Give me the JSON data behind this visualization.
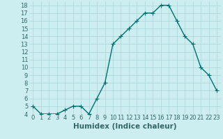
{
  "x": [
    0,
    1,
    2,
    3,
    4,
    5,
    6,
    7,
    8,
    9,
    10,
    11,
    12,
    13,
    14,
    15,
    16,
    17,
    18,
    19,
    20,
    21,
    22,
    23
  ],
  "y": [
    5,
    4,
    4,
    4,
    4.5,
    5,
    5,
    4,
    6,
    8,
    13,
    14,
    15,
    16,
    17,
    17,
    18,
    18,
    16,
    14,
    13,
    10,
    9,
    7
  ],
  "xlabel": "Humidex (Indice chaleur)",
  "line_color": "#007070",
  "marker": "+",
  "bg_color": "#cceef0",
  "grid_color": "#aad4d6",
  "tick_label_color": "#336666",
  "ylim": [
    4,
    18.5
  ],
  "yticks": [
    4,
    5,
    6,
    7,
    8,
    9,
    10,
    11,
    12,
    13,
    14,
    15,
    16,
    17,
    18
  ],
  "xticks": [
    0,
    1,
    2,
    3,
    4,
    5,
    6,
    7,
    8,
    9,
    10,
    11,
    12,
    13,
    14,
    15,
    16,
    17,
    18,
    19,
    20,
    21,
    22,
    23
  ],
  "xlabel_color": "#336666",
  "xlabel_fontsize": 7.5,
  "tick_fontsize": 6.0,
  "linewidth": 1.0,
  "markersize": 4,
  "markeredgewidth": 0.8
}
